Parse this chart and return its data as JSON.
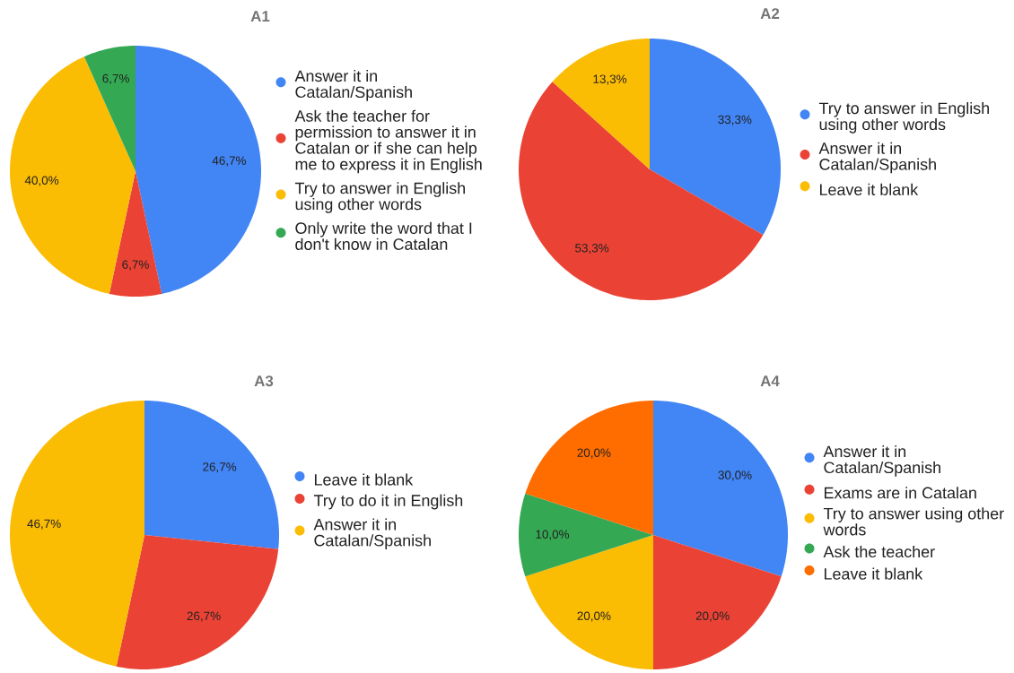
{
  "chart_data": [
    {
      "type": "pie",
      "title": "A1",
      "categories": [
        "Answer it in Catalan/Spanish",
        "Ask the teacher for permission to answer it in Catalan or if she can help me to express it in English",
        "Try to answer in English using other words",
        "Only write the word that I don't know in Catalan"
      ],
      "values": [
        46.7,
        6.7,
        40.0,
        6.7
      ],
      "colors": [
        "#4285f4",
        "#ea4335",
        "#fbbc04",
        "#34a853"
      ],
      "value_labels": [
        "46,7%",
        "6,7%",
        "40,0%",
        "6,7%"
      ],
      "legend": "right"
    },
    {
      "type": "pie",
      "title": "A2",
      "categories": [
        "Try to answer in English using other words",
        "Answer it in Catalan/Spanish",
        "Leave it blank"
      ],
      "values": [
        33.3,
        53.3,
        13.3
      ],
      "colors": [
        "#4285f4",
        "#ea4335",
        "#fbbc04"
      ],
      "value_labels": [
        "33,3%",
        "53,3%",
        "13,3%"
      ],
      "legend": "right"
    },
    {
      "type": "pie",
      "title": "A3",
      "categories": [
        "Leave it blank",
        "Try to do it in English",
        "Answer it in Catalan/Spanish"
      ],
      "values": [
        26.7,
        26.7,
        46.7
      ],
      "colors": [
        "#4285f4",
        "#ea4335",
        "#fbbc04"
      ],
      "value_labels": [
        "26,7%",
        "26,7%",
        "46,7%"
      ],
      "legend": "right"
    },
    {
      "type": "pie",
      "title": "A4",
      "categories": [
        "Answer it in Catalan/Spanish",
        "Exams are in Catalan",
        "Try to answer using other words",
        "Ask the teacher",
        "Leave it blank"
      ],
      "values": [
        30.0,
        20.0,
        20.0,
        10.0,
        20.0
      ],
      "colors": [
        "#4285f4",
        "#ea4335",
        "#fbbc04",
        "#34a853",
        "#ff6d01"
      ],
      "value_labels": [
        "30,0%",
        "20,0%",
        "20,0%",
        "10,0%",
        "20,0%"
      ],
      "legend": "right"
    }
  ]
}
